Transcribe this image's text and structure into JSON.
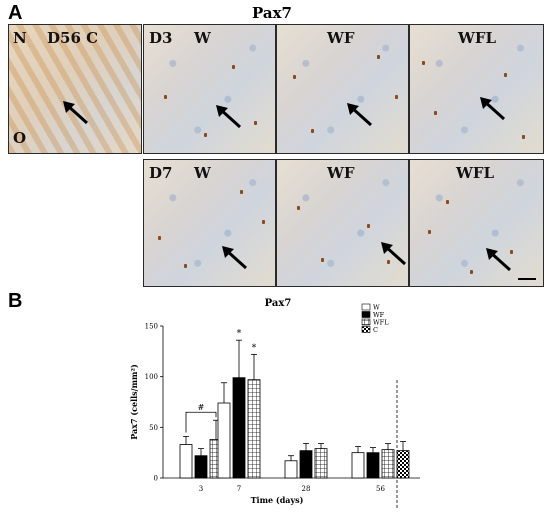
{
  "panel_a": {
    "letter": "A",
    "title": "Pax7",
    "images": [
      {
        "labels": [
          "N",
          "D56 C",
          "O"
        ]
      },
      {
        "labels": [
          "D3",
          "W"
        ]
      },
      {
        "labels": [
          "WF"
        ]
      },
      {
        "labels": [
          "WFL"
        ]
      },
      {
        "labels": [
          "D7",
          "W"
        ]
      },
      {
        "labels": [
          "WF"
        ]
      },
      {
        "labels": [
          "WFL"
        ]
      }
    ]
  },
  "panel_b": {
    "letter": "B"
  },
  "colors": {
    "W": "#ffffff",
    "WF": "#000000",
    "stroke": "#000000"
  },
  "chart_data": {
    "type": "bar",
    "title": "Pax7",
    "xlabel": "Time (days)",
    "ylabel": "Pax7 (cells/mm²)",
    "ylim": [
      0,
      150
    ],
    "yticks": [
      0,
      50,
      100,
      150
    ],
    "categories": [
      "3",
      "7",
      "28",
      "56"
    ],
    "series": [
      {
        "name": "W",
        "fill": "white",
        "values": [
          33,
          74,
          17,
          25
        ],
        "errors": [
          8,
          20,
          5,
          6
        ]
      },
      {
        "name": "WF",
        "fill": "black",
        "values": [
          22,
          99,
          27,
          25
        ],
        "errors": [
          7,
          37,
          7,
          5
        ]
      },
      {
        "name": "WFL",
        "fill": "grid",
        "values": [
          38,
          97,
          29,
          28
        ],
        "errors": [
          19,
          25,
          5,
          6
        ]
      },
      {
        "name": "C",
        "fill": "checker",
        "values": [
          null,
          null,
          null,
          27
        ],
        "errors": [
          null,
          null,
          null,
          9
        ]
      }
    ],
    "annotations": [
      {
        "text": "#",
        "category": "3",
        "between": [
          "W",
          "WFL"
        ]
      },
      {
        "text": "*",
        "category": "7",
        "series": "WF"
      },
      {
        "text": "*",
        "category": "7",
        "series": "WFL"
      }
    ],
    "legend_position": "top-right",
    "dashed_separator_before": "C"
  }
}
